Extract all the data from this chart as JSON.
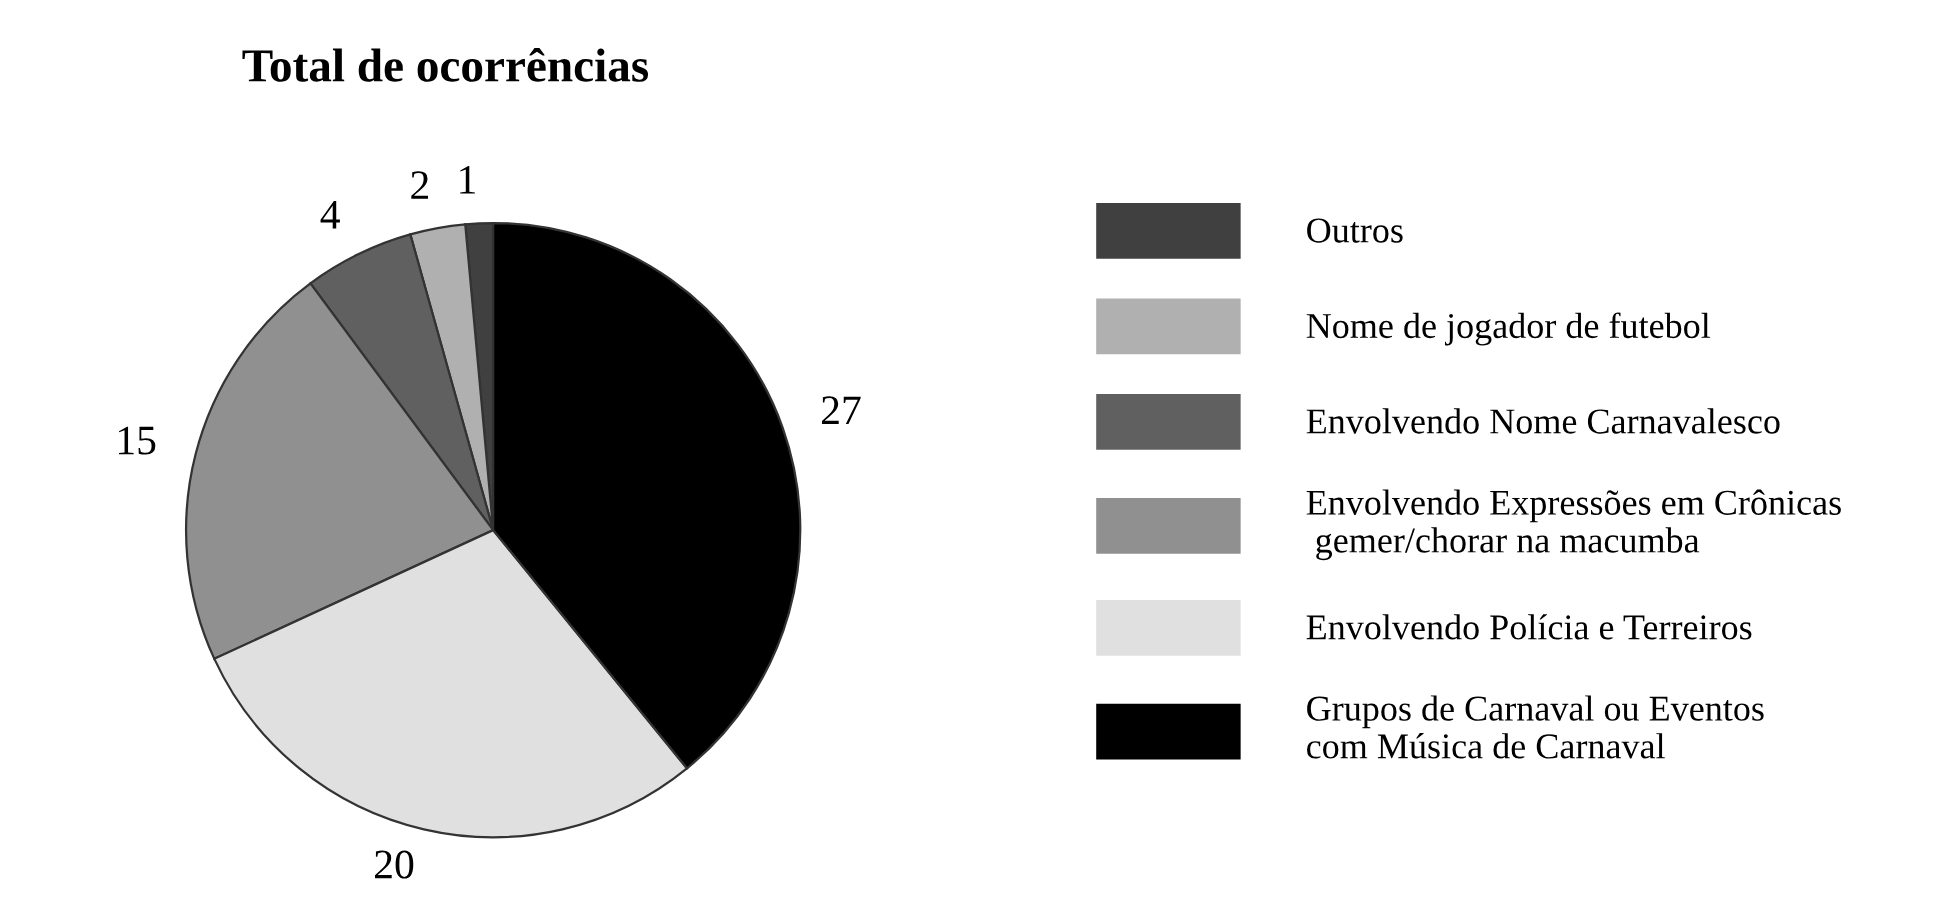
{
  "chart_data": {
    "type": "pie",
    "title": "Total de ocorrências",
    "categories": [
      "Outros",
      "Nome de jogador de futebol",
      "Envolvendo Nome Carnavalesco",
      "Envolvendo Expressões em Crônicas\n gemer/chorar na macumba",
      "Envolvendo Polícia e Terreiros",
      "Grupos de Carnaval ou Eventos\ncom Música de Carnaval"
    ],
    "values": [
      1,
      2,
      4,
      15,
      20,
      27
    ],
    "colors": [
      "#404040",
      "#b0b0b0",
      "#606060",
      "#909090",
      "#e0e0e0",
      "#000000"
    ],
    "data_labels": true,
    "legend": "right"
  }
}
